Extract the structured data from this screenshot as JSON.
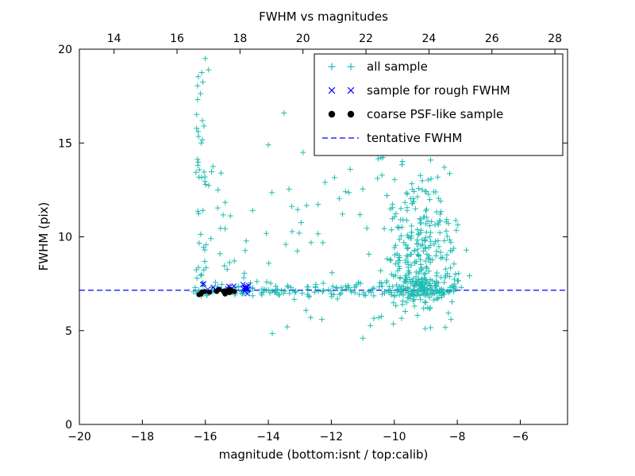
{
  "figure": {
    "title": "FWHM vs magnitudes",
    "xlabel": "magnitude (bottom:isnt / top:calib)",
    "ylabel": "FWHM (pix)"
  },
  "chart_data": {
    "type": "scatter",
    "title": "FWHM vs magnitudes",
    "xlabel": "magnitude (bottom:isnt / top:calib)",
    "ylabel": "FWHM (pix)",
    "xlim": [
      -20,
      -4.5
    ],
    "ylim": [
      0,
      20
    ],
    "x_ticks_bottom": [
      -20,
      -18,
      -16,
      -14,
      -12,
      -10,
      -8,
      -6
    ],
    "x_ticks_top": [
      14,
      16,
      18,
      20,
      22,
      24,
      26,
      28
    ],
    "top_axis_offset": 32.9,
    "y_ticks": [
      0,
      5,
      10,
      15,
      20
    ],
    "grid": false,
    "legend_position": "upper right",
    "tentative_fwhm_y": 7.15,
    "colors": {
      "all_sample": "#1fbcb2",
      "rough_sample": "#0000ff",
      "psf_sample": "#000000",
      "tentative_line": "#0000ff",
      "axes": "#000000",
      "background": "#ffffff"
    },
    "legend": [
      {
        "label": "all sample",
        "marker": "plus",
        "color": "#1fbcb2"
      },
      {
        "label": "sample for rough FWHM",
        "marker": "cross",
        "color": "#0000ff"
      },
      {
        "label": "coarse PSF-like sample",
        "marker": "dot",
        "color": "#000000"
      },
      {
        "label": "tentative FWHM",
        "marker": "dashed",
        "color": "#0000ff"
      }
    ],
    "series": [
      {
        "name": "all sample",
        "marker": "plus",
        "color": "#1fbcb2",
        "seed": 42,
        "points": [
          [
            -13.5,
            16.6
          ],
          [
            -12.9,
            14.5
          ],
          [
            -14.0,
            14.9
          ],
          [
            -11.4,
            13.6
          ],
          [
            -12.2,
            12.9
          ],
          [
            -15.9,
            18.9
          ],
          [
            -15.5,
            13.4
          ],
          [
            -15.6,
            12.5
          ],
          [
            -16.0,
            19.5
          ],
          [
            -11.0,
            4.6
          ],
          [
            -12.3,
            5.6
          ],
          [
            -13.4,
            5.2
          ],
          [
            -8.2,
            5.6
          ],
          [
            -10.4,
            15.0
          ],
          [
            -9.6,
            14.8
          ]
        ],
        "clusters": [
          {
            "n": 34,
            "x": [
              -16.3,
              -16.0
            ],
            "y": [
              7.6,
              20.0
            ]
          },
          {
            "n": 8,
            "x": [
              -16.35,
              -15.3
            ],
            "y": [
              11.0,
              14.0
            ]
          },
          {
            "n": 12,
            "x": [
              -16.3,
              -15.2
            ],
            "y": [
              8.0,
              11.5
            ]
          },
          {
            "n": 20,
            "x": {
              "c": -16.0,
              "s": 0.3
            },
            "y": {
              "c": 7.2,
              "s": 0.25
            }
          },
          {
            "n": 32,
            "x": [
              -15.4,
              -10.8
            ],
            "y": [
              7.8,
              13.2
            ]
          },
          {
            "n": 150,
            "x": [
              -15.2,
              -8.0
            ],
            "y": {
              "c": 7.15,
              "s": 0.2
            }
          },
          {
            "n": 250,
            "x": {
              "c": -9.2,
              "s": 0.55
            },
            "y": {
              "c": 9.0,
              "s": 1.8
            }
          },
          {
            "n": 110,
            "x": {
              "c": -9.1,
              "s": 0.5
            },
            "y": {
              "c": 7.3,
              "s": 0.45
            }
          },
          {
            "n": 26,
            "x": [
              -10.6,
              -8.2
            ],
            "y": [
              12.0,
              15.2
            ]
          },
          {
            "n": 9,
            "x": [
              -14.3,
              -9.2
            ],
            "y": [
              4.8,
              6.3
            ]
          }
        ]
      },
      {
        "name": "sample for rough FWHM",
        "marker": "cross",
        "color": "#0000ff",
        "seed": 7,
        "points": [
          [
            -16.05,
            7.5
          ]
        ],
        "clusters": [
          {
            "n": 9,
            "x": [
              -16.1,
              -14.95
            ],
            "y": {
              "c": 7.3,
              "s": 0.07
            }
          },
          {
            "n": 16,
            "x": {
              "c": -14.7,
              "s": 0.08
            },
            "y": {
              "c": 7.25,
              "s": 0.09
            }
          }
        ]
      },
      {
        "name": "coarse PSF-like sample",
        "marker": "dot",
        "color": "#000000",
        "seed": 3,
        "points": [],
        "clusters": [
          {
            "n": 22,
            "x": [
              -16.2,
              -15.05
            ],
            "y": {
              "c": 7.1,
              "s": 0.06
            }
          }
        ]
      }
    ]
  }
}
